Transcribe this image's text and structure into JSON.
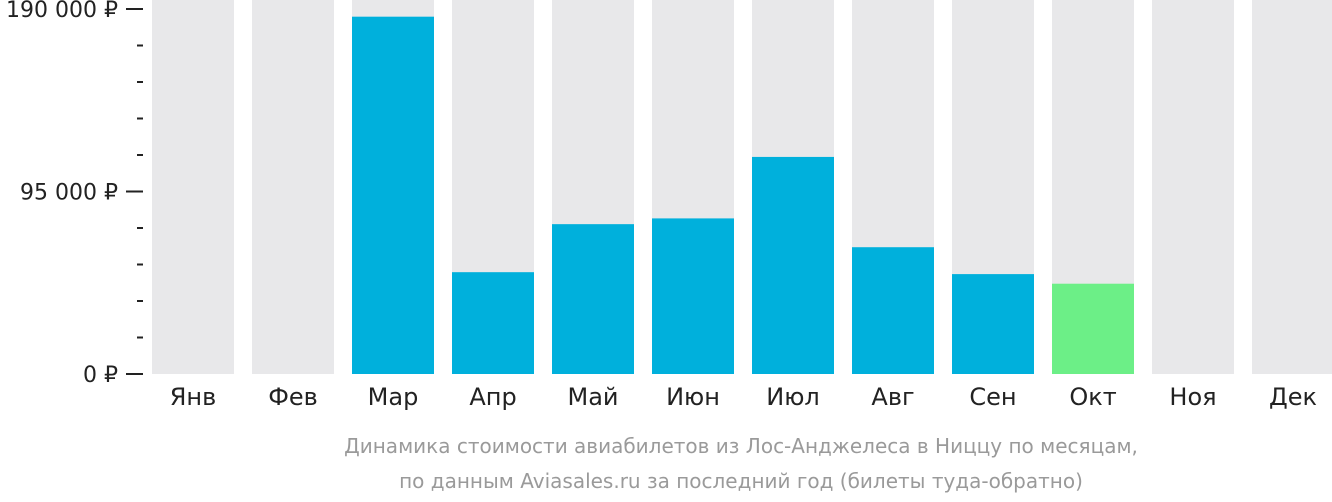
{
  "chart_data": {
    "type": "bar",
    "categories": [
      "Янв",
      "Фев",
      "Мар",
      "Апр",
      "Май",
      "Июн",
      "Июл",
      "Авг",
      "Сен",
      "Окт",
      "Ноя",
      "Дек"
    ],
    "values": [
      null,
      null,
      186000,
      53000,
      78000,
      81000,
      113000,
      66000,
      52000,
      47000,
      null,
      null
    ],
    "highlight_index": 9,
    "ylim": [
      0,
      190000
    ],
    "yticks": [
      {
        "value": 0,
        "label": "0 ₽"
      },
      {
        "value": 95000,
        "label": "95 000 ₽"
      },
      {
        "value": 190000,
        "label": "190 000 ₽"
      }
    ],
    "minor_tick_step": 19000,
    "title": "",
    "xlabel": "",
    "ylabel": "",
    "grid": false,
    "colors": {
      "bar": "#00b0dc",
      "highlight": "#6cef87",
      "background_bar": "#e8e8ea",
      "axis": "#222222"
    }
  },
  "caption": {
    "line1": "Динамика стоимости авиабилетов из Лос-Анджелеса в Ниццу по месяцам,",
    "line2": "по данным Aviasales.ru за последний год (билеты туда-обратно)"
  }
}
